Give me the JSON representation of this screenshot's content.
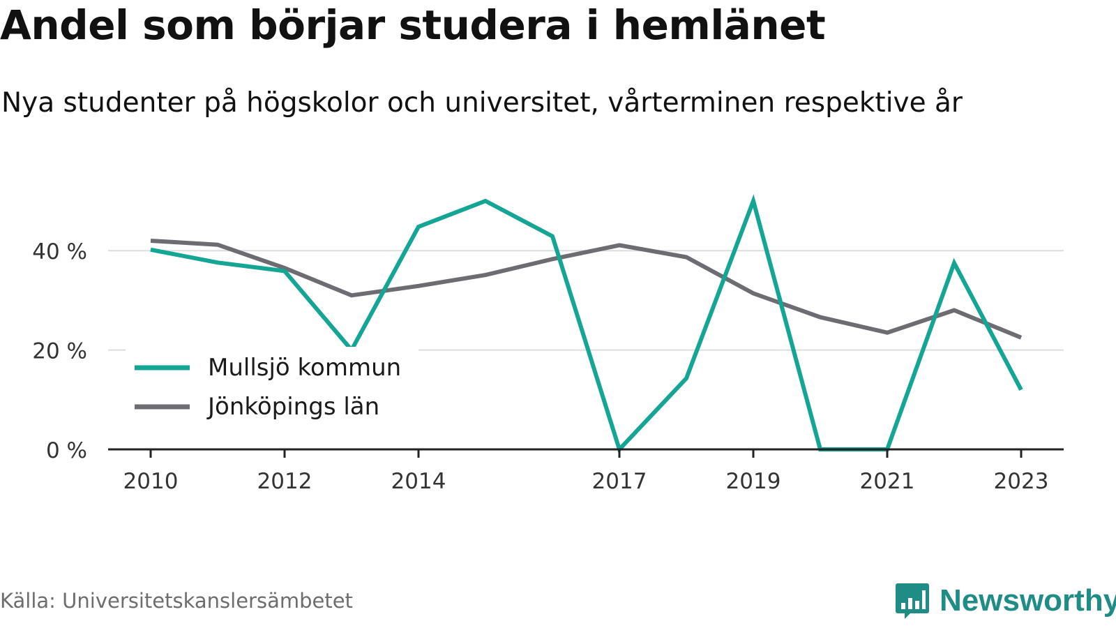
{
  "header": {
    "title": "Andel som börjar studera i hemlänet",
    "subtitle": "Nya studenter på högskolor och universitet, vårterminen respektive år"
  },
  "footer": {
    "source": "Källa: Universitetskanslersämbetet",
    "brand": "Newsworthy",
    "brand_icon": "bar-chart-speech-bubble-icon",
    "brand_color": "#1f8c86"
  },
  "chart_data": {
    "type": "line",
    "x": [
      2010,
      2011,
      2012,
      2013,
      2014,
      2015,
      2016,
      2017,
      2018,
      2019,
      2020,
      2021,
      2022,
      2023
    ],
    "x_tick_labels": [
      "2010",
      "2012",
      "2014",
      "2017",
      "2019",
      "2021",
      "2023"
    ],
    "y_tick_labels": [
      "0 %",
      "20 %",
      "40 %"
    ],
    "y_ticks": [
      0,
      20,
      40
    ],
    "ylim": [
      0,
      50
    ],
    "grid": "horizontal",
    "legend_position": "bottom-left",
    "series": [
      {
        "name": "Mullsjö kommun",
        "color": "#14a595",
        "values": [
          40.2,
          37.6,
          35.9,
          20.0,
          44.8,
          50.0,
          42.9,
          0.0,
          14.3,
          50.0,
          0.0,
          0.0,
          37.5,
          12.0
        ]
      },
      {
        "name": "Jönköpings län",
        "color": "#6d6c72",
        "values": [
          42.0,
          41.2,
          36.5,
          31.0,
          32.9,
          35.1,
          38.3,
          41.1,
          38.7,
          31.4,
          26.6,
          23.5,
          28.0,
          22.5
        ]
      }
    ]
  }
}
